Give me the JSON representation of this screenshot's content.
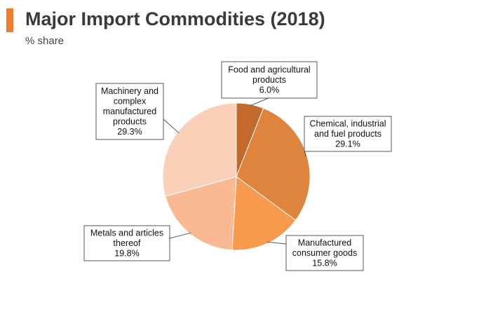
{
  "header": {
    "title": "Major Import Commodities (2018)",
    "subtitle": "% share",
    "accent_color": "#ef7d2b"
  },
  "chart_data": {
    "type": "pie",
    "title": "Major Import Commodities (2018)",
    "subtitle": "% share",
    "unit": "%",
    "slices": [
      {
        "label": "Food and agricultural products",
        "label_lines": [
          "Food and agricultural",
          "products"
        ],
        "value": 6.0,
        "value_text": "6.0%",
        "color": "#c26a2c"
      },
      {
        "label": "Chemical, industrial and fuel products",
        "label_lines": [
          "Chemical, industrial",
          "and fuel products"
        ],
        "value": 29.1,
        "value_text": "29.1%",
        "color": "#de843c"
      },
      {
        "label": "Manufactured consumer goods",
        "label_lines": [
          "Manufactured",
          "consumer goods"
        ],
        "value": 15.8,
        "value_text": "15.8%",
        "color": "#f79a4e"
      },
      {
        "label": "Metals and articles thereof",
        "label_lines": [
          "Metals and articles",
          "thereof"
        ],
        "value": 19.8,
        "value_text": "19.8%",
        "color": "#f9b992"
      },
      {
        "label": "Machinery and complex manufactured products",
        "label_lines": [
          "Machinery and",
          "complex",
          "manufactured",
          "products"
        ],
        "value": 29.3,
        "value_text": "29.3%",
        "color": "#fbd0b8"
      }
    ],
    "start_angle": "12 o'clock",
    "direction": "clockwise",
    "legend": "none",
    "data_labels": "callout boxes"
  }
}
